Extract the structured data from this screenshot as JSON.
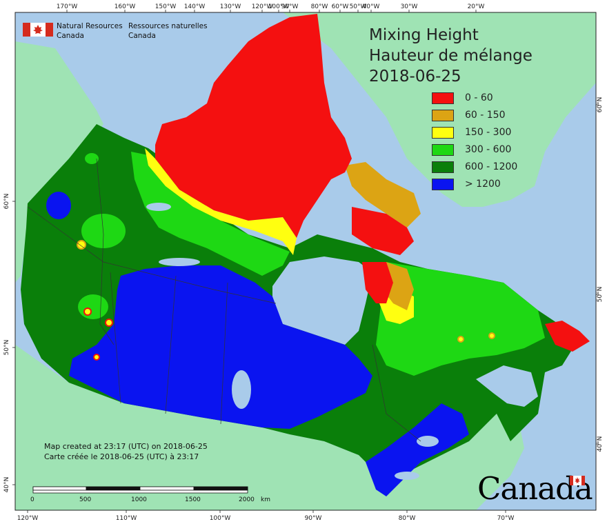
{
  "map": {
    "title_en": "Mixing Height",
    "title_fr": "Hauteur de mélange",
    "date": "2018-06-25",
    "agency_en_line1": "Natural Resources",
    "agency_en_line2": "Canada",
    "agency_fr_line1": "Ressources naturelles",
    "agency_fr_line2": "Canada",
    "created_en": "Map created at 23:17 (UTC) on 2018-06-25",
    "created_fr": "Carte créée le 2018-06-25 (UTC) à 23:17",
    "wordmark": "Canada"
  },
  "legend": [
    {
      "label": "0 - 60",
      "color": "#f41010"
    },
    {
      "label": "60 - 150",
      "color": "#dca414"
    },
    {
      "label": "150 - 300",
      "color": "#ffff10"
    },
    {
      "label": "300 - 600",
      "color": "#1ed814"
    },
    {
      "label": "600 - 1200",
      "color": "#0a7f0a"
    },
    {
      "label": "> 1200",
      "color": "#0a14f0"
    }
  ],
  "top_ticks": [
    "170°W",
    "160°W",
    "150°W",
    "140°W",
    "130°W",
    "120°W",
    "100°W",
    "90°W",
    "80°W",
    "60°W",
    "50°W",
    "40°W",
    "30°W",
    "20°W"
  ],
  "bottom_ticks": [
    "120°W",
    "110°W",
    "100°W",
    "90°W",
    "80°W",
    "70°W"
  ],
  "left_ticks": [
    "60°N",
    "50°N",
    "40°N"
  ],
  "right_ticks": [
    "60°N",
    "50°N",
    "40°N"
  ],
  "scale_bar": {
    "labels": [
      "0",
      "500",
      "1000",
      "1500",
      "2000"
    ],
    "unit": "km"
  },
  "colors": {
    "ocean": "#a9cbea",
    "foreign_land": "#9fe3b4",
    "lakes": "#a9cbea"
  }
}
